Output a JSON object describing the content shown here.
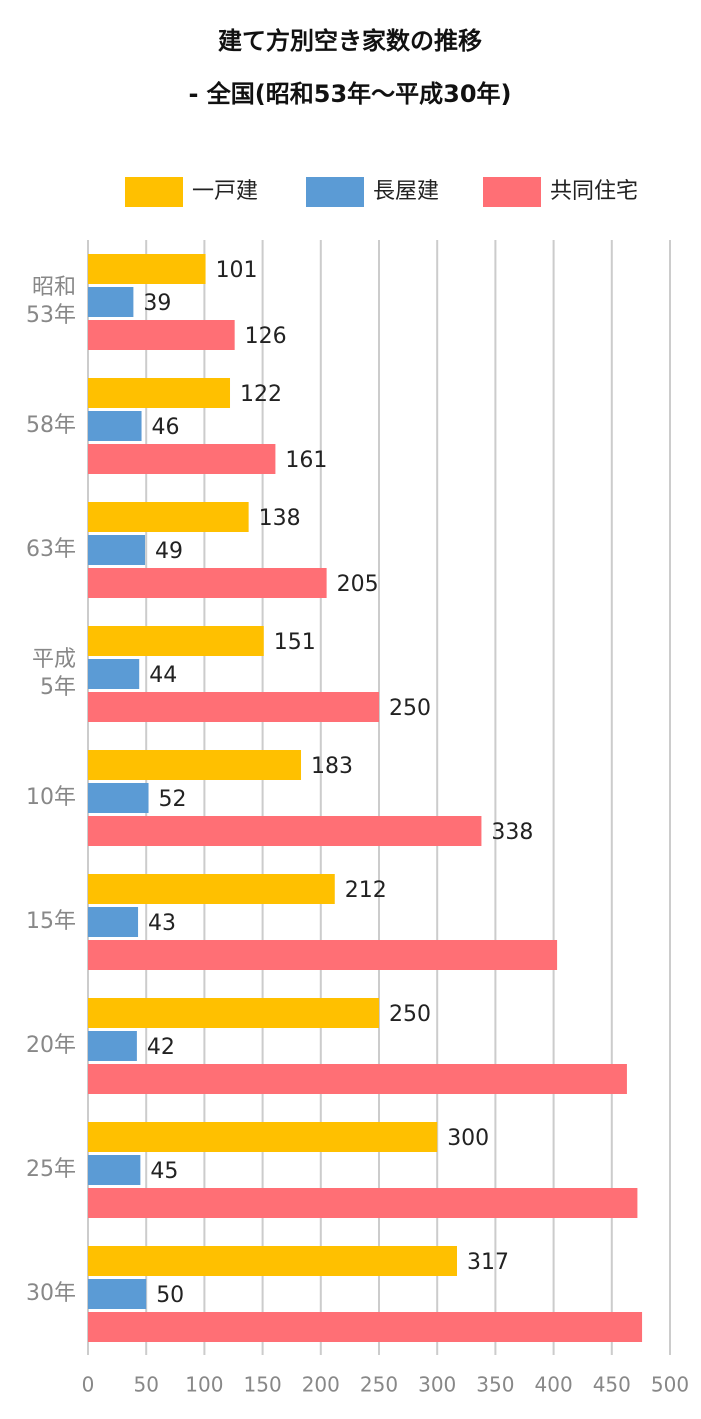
{
  "chart_data": {
    "type": "bar",
    "orientation": "horizontal",
    "title": "建て方別空き家数の推移",
    "subtitle": "- 全国(昭和53年～平成30年)",
    "categories": [
      "昭和\n53年",
      "58年",
      "63年",
      "平成\n5年",
      "10年",
      "15年",
      "20年",
      "25年",
      "30年"
    ],
    "series": [
      {
        "name": "一戸建",
        "color": "#ffc000",
        "values": [
          101,
          122,
          138,
          151,
          183,
          212,
          250,
          300,
          317
        ]
      },
      {
        "name": "長屋建",
        "color": "#5b9bd5",
        "values": [
          39,
          46,
          49,
          44,
          52,
          43,
          42,
          45,
          50
        ]
      },
      {
        "name": "共同住宅",
        "color": "#ff6f75",
        "values": [
          126,
          161,
          205,
          250,
          338,
          403,
          463,
          472,
          476
        ],
        "value_labels": [
          "126",
          "161",
          "205",
          "250",
          "338",
          null,
          null,
          null,
          null
        ]
      }
    ],
    "xlim": [
      0,
      500
    ],
    "xticks": [
      0,
      50,
      100,
      150,
      200,
      250,
      300,
      350,
      400,
      450,
      500
    ],
    "grid": true,
    "legend": "top"
  }
}
